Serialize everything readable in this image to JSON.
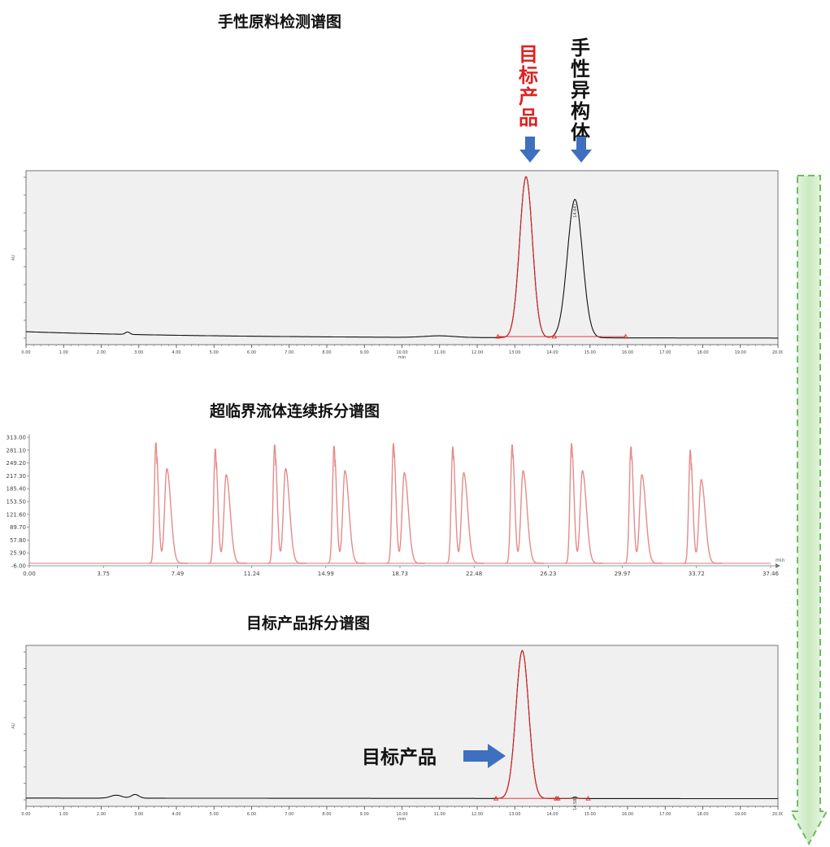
{
  "titles": {
    "chart1": "手性原料检测谱图",
    "chart2": "超临界流体连续拆分谱图",
    "chart3": "目标产品拆分谱图"
  },
  "annotations": {
    "target_product_vertical": "目标产品",
    "chiral_isomer_vertical": "手性异构体",
    "target_product_callout": "目标产品"
  },
  "colors": {
    "target": "#e02020",
    "isomer": "#111111",
    "arrow_blue": "#3f6fbf",
    "continuous_trace": "#e58a8a",
    "green_arrow": "#6cbd5e",
    "panel_bg": "#f0f0f0"
  },
  "chart_data": [
    {
      "type": "line",
      "title": "手性原料检测谱图",
      "ylabel": "AU",
      "xlabel": "min",
      "xlim": [
        0,
        20
      ],
      "x_ticks": [
        "0.00",
        "1.00",
        "2.00",
        "3.00",
        "4.00",
        "5.00",
        "6.00",
        "7.00",
        "8.00",
        "9.00",
        "10.00",
        "11.00",
        "12.00",
        "13.00",
        "14.00",
        "15.00",
        "16.00",
        "17.00",
        "18.00",
        "19.00",
        "20.00"
      ],
      "series": [
        {
          "role": "target",
          "peak_time": 13.3
        },
        {
          "role": "isomer",
          "peak_time": 14.6,
          "peak_label": "14.647"
        }
      ]
    },
    {
      "type": "line",
      "title": "超临界流体连续拆分谱图",
      "xlim": [
        0,
        37.46
      ],
      "ylim": [
        -6.0,
        313.0
      ],
      "x_ticks": [
        "0.00",
        "3.75",
        "7.49",
        "11.24",
        "14.99",
        "18.73",
        "22.48",
        "26.23",
        "29.97",
        "33.72",
        "37.46"
      ],
      "y_ticks": [
        "-6.00",
        "25.90",
        "57.80",
        "89.70",
        "121.60",
        "153.50",
        "185.40",
        "217.30",
        "249.20",
        "281.10",
        "313.00"
      ],
      "x_unit": "min",
      "injections": [
        6.4,
        9.4,
        12.4,
        15.4,
        18.4,
        21.4,
        24.4,
        27.4,
        30.4,
        33.4
      ],
      "peak_heights": [
        [
          300,
          235
        ],
        [
          285,
          220
        ],
        [
          295,
          235
        ],
        [
          292,
          230
        ],
        [
          298,
          225
        ],
        [
          290,
          225
        ],
        [
          295,
          230
        ],
        [
          298,
          230
        ],
        [
          290,
          220
        ],
        [
          282,
          208
        ]
      ]
    },
    {
      "type": "line",
      "title": "目标产品拆分谱图",
      "ylabel": "AU",
      "xlabel": "min",
      "xlim": [
        0,
        20
      ],
      "x_ticks": [
        "0.00",
        "1.00",
        "2.00",
        "3.00",
        "4.00",
        "5.00",
        "6.00",
        "7.00",
        "8.00",
        "9.00",
        "10.00",
        "11.00",
        "12.00",
        "13.00",
        "14.00",
        "15.00",
        "16.00",
        "17.00",
        "18.00",
        "19.00",
        "20.00"
      ],
      "series": [
        {
          "role": "target",
          "peak_time": 13.2
        },
        {
          "role": "trace",
          "peak_time": 14.6,
          "peak_label": "14.586"
        }
      ]
    }
  ]
}
